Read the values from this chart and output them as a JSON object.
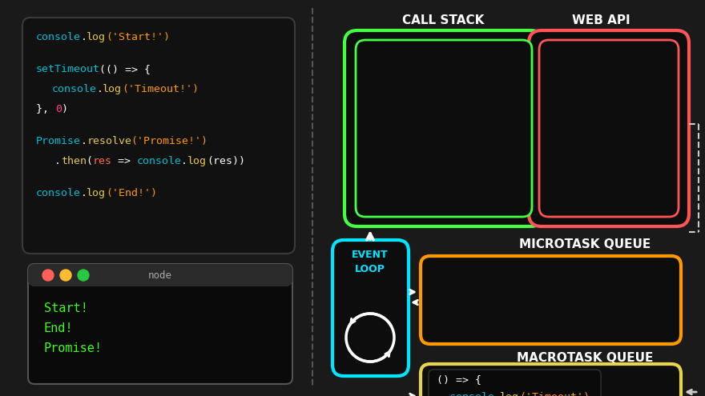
{
  "bg_color": "#1a1a1a",
  "color_green": "#44ff44",
  "color_red": "#ff5555",
  "color_orange": "#ff9900",
  "color_yellow": "#e8d44d",
  "color_cyan": "#00e5ff",
  "color_white": "#ffffff",
  "color_gray": "#888888",
  "call_stack_label": "CALL STACK",
  "web_api_label": "WEB API",
  "microtask_label": "MICROTASK QUEUE",
  "macrotask_label": "MACROTASK QUEUE",
  "terminal_outputs": [
    "Start!",
    "End!",
    "Promise!"
  ],
  "macrotask_code_line1": "() => {",
  "macrotask_code_line2_a": "  console",
  "macrotask_code_line2_b": ".",
  "macrotask_code_line2_c": "log",
  "macrotask_code_line2_d": "('Timeout')",
  "macrotask_code_line3": "}"
}
